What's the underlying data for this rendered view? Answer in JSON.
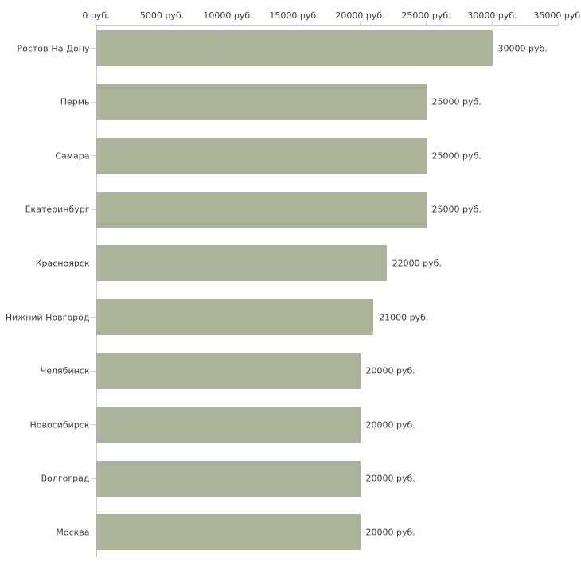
{
  "chart_data": {
    "type": "bar",
    "orientation": "horizontal",
    "title": "",
    "categories": [
      "Ростов-На-Дону",
      "Пермь",
      "Самара",
      "Екатеринбург",
      "Красноярск",
      "Нижний Новгород",
      "Челябинск",
      "Новосибирск",
      "Волгоград",
      "Москва"
    ],
    "values": [
      30000,
      25000,
      25000,
      25000,
      22000,
      21000,
      20000,
      20000,
      20000,
      20000
    ],
    "value_labels": [
      "30000 руб.",
      "25000 руб.",
      "25000 руб.",
      "25000 руб.",
      "22000 руб.",
      "21000 руб.",
      "20000 руб.",
      "20000 руб.",
      "20000 руб.",
      "20000 руб."
    ],
    "x_axis": {
      "position": "top",
      "tick_values": [
        0,
        5000,
        10000,
        15000,
        20000,
        25000,
        30000,
        35000
      ],
      "tick_labels": [
        "0 руб.",
        "5000 руб.",
        "10000 руб.",
        "15000 руб.",
        "20000 руб.",
        "25000 руб.",
        "30000 руб.",
        "35000 руб."
      ],
      "xlim": [
        0,
        35000
      ]
    },
    "grid": false,
    "legend": false,
    "colors": {
      "bar": "#abb49a",
      "axis_line": "#c9c9c9",
      "x_tick": "#d5d5aa",
      "y_tick": "#d9d4b5",
      "text": "#3c3c3c",
      "background": "#ffffff"
    }
  }
}
